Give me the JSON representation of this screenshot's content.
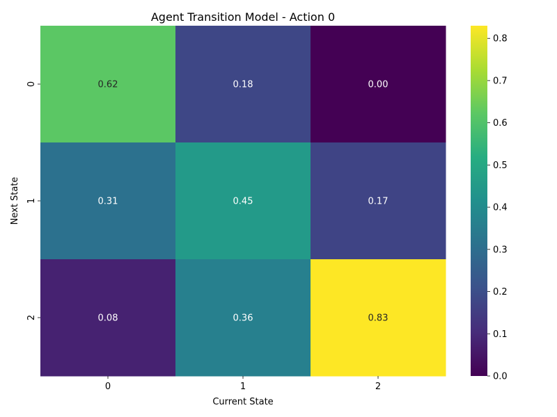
{
  "chart_data": {
    "type": "heatmap",
    "title": "Agent Transition Model - Action 0",
    "xlabel": "Current State",
    "ylabel": "Next State",
    "x_categories": [
      "0",
      "1",
      "2"
    ],
    "y_categories": [
      "0",
      "1",
      "2"
    ],
    "values": [
      [
        0.62,
        0.18,
        0.0
      ],
      [
        0.31,
        0.45,
        0.17
      ],
      [
        0.08,
        0.36,
        0.83
      ]
    ],
    "annotations": [
      [
        "0.62",
        "0.18",
        "0.00"
      ],
      [
        "0.31",
        "0.45",
        "0.17"
      ],
      [
        "0.08",
        "0.36",
        "0.83"
      ]
    ],
    "colormap": "viridis",
    "vmin": 0.0,
    "vmax": 0.83,
    "colorbar_ticks": [
      "0.0",
      "0.1",
      "0.2",
      "0.3",
      "0.4",
      "0.5",
      "0.6",
      "0.7",
      "0.8"
    ],
    "colorbar_tick_values": [
      0.0,
      0.1,
      0.2,
      0.3,
      0.4,
      0.5,
      0.6,
      0.7,
      0.8
    ]
  }
}
